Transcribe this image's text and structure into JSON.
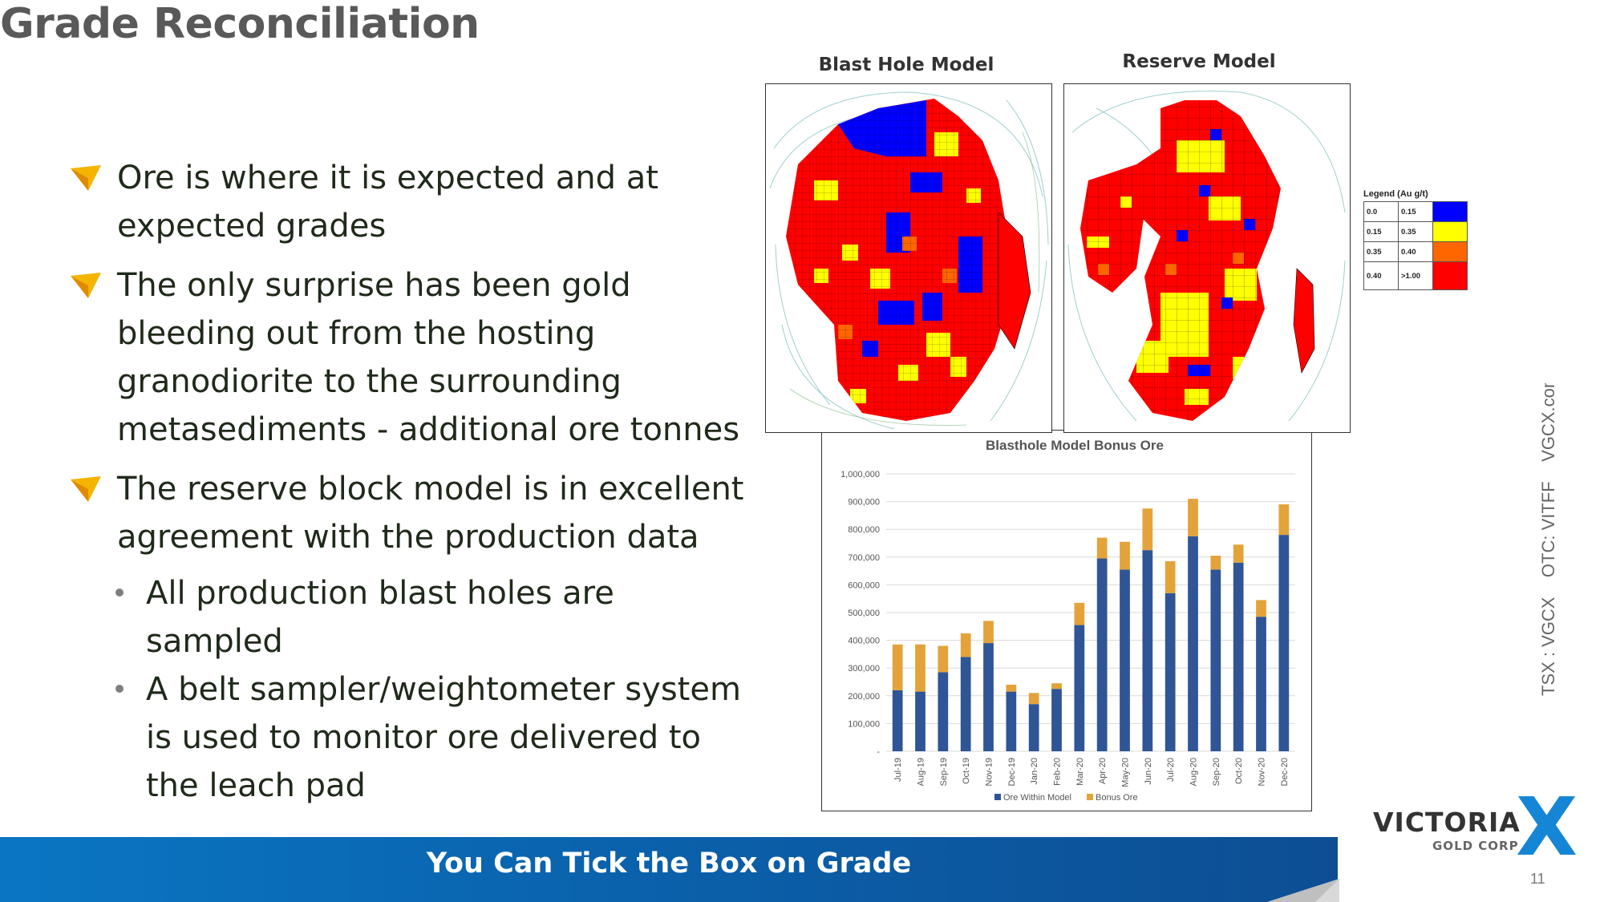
{
  "slide": {
    "title": "Grade Reconciliation",
    "bullets": [
      {
        "lines": [
          "Ore is where it is expected and at",
          "expected grades"
        ]
      },
      {
        "lines": [
          "The only surprise has been gold",
          "bleeding out from the hosting",
          "granodiorite to the surrounding",
          "metasediments - additional ore tonnes"
        ]
      },
      {
        "lines": [
          "The reserve block model is in excellent",
          "agreement with the production data"
        ]
      }
    ],
    "sub_bullets": [
      {
        "lines": [
          "All production blast holes are",
          "sampled"
        ]
      },
      {
        "lines": [
          "A belt sampler/weightometer system",
          "is used to monitor ore delivered to",
          "the leach pad"
        ]
      }
    ],
    "footer": "You Can Tick the Box on Grade",
    "page_number": "11",
    "ticker": "TSX : VGCX    OTC: VITFF    VGCX.com",
    "logo": {
      "main": "VICTORIA",
      "sub": "GOLD CORP",
      "mark": "X"
    }
  },
  "maps": {
    "blast_title": "Blast Hole Model",
    "reserve_title": "Reserve Model",
    "legend": {
      "title": "Legend (Au g/t)",
      "rows": [
        {
          "from": "0.0",
          "to": "0.15",
          "color": "#0000ff"
        },
        {
          "from": "0.15",
          "to": "0.35",
          "color": "#ffff00"
        },
        {
          "from": "0.35",
          "to": "0.40",
          "color": "#ff6600"
        },
        {
          "from": "0.40",
          "to": ">1.00",
          "color": "#ff0000"
        }
      ]
    }
  },
  "chart_data": {
    "type": "bar",
    "stacked": true,
    "title": "Blasthole Model Bonus Ore",
    "categories": [
      "Jul-19",
      "Aug-19",
      "Sep-19",
      "Oct-19",
      "Nov-19",
      "Dec-19",
      "Jan-20",
      "Feb-20",
      "Mar-20",
      "Apr-20",
      "May-20",
      "Jun-20",
      "Jul-20",
      "Aug-20",
      "Sep-20",
      "Oct-20",
      "Nov-20",
      "Dec-20"
    ],
    "series": [
      {
        "name": "Ore Within Model",
        "color": "#2f5597",
        "values": [
          220000,
          215000,
          285000,
          340000,
          390000,
          215000,
          170000,
          225000,
          455000,
          695000,
          655000,
          725000,
          570000,
          775000,
          655000,
          680000,
          485000,
          780000
        ]
      },
      {
        "name": "Bonus Ore",
        "color": "#e3a33a",
        "values": [
          165000,
          170000,
          95000,
          85000,
          80000,
          25000,
          40000,
          20000,
          80000,
          75000,
          100000,
          150000,
          115000,
          135000,
          50000,
          65000,
          60000,
          110000
        ]
      }
    ],
    "ylim": [
      0,
      1000000
    ],
    "yticks": [
      "-",
      "100,000",
      "200,000",
      "300,000",
      "400,000",
      "500,000",
      "600,000",
      "700,000",
      "800,000",
      "900,000",
      "1,000,000"
    ],
    "legend_position": "bottom",
    "grid": true
  }
}
